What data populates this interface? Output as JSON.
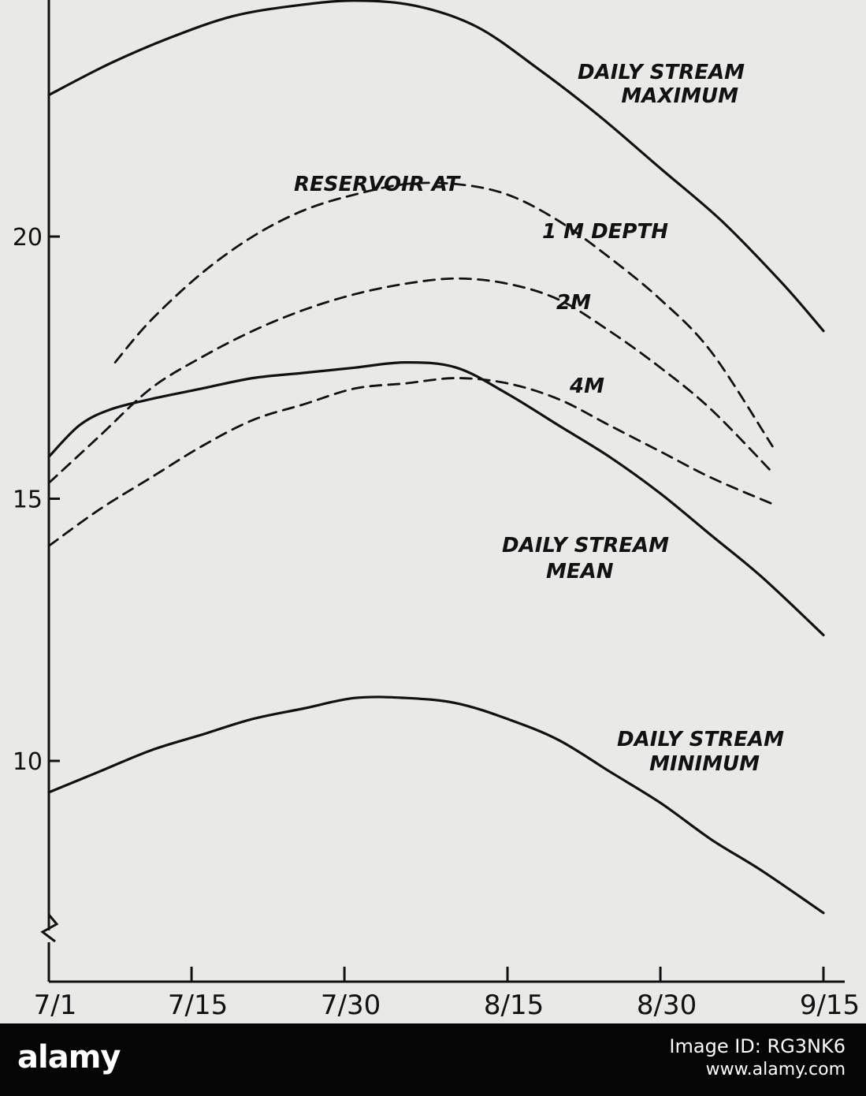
{
  "chart_data": {
    "type": "line",
    "title": "",
    "xlabel": "",
    "ylabel": "",
    "x_ticks": [
      "7/1",
      "7/15",
      "7/30",
      "8/15",
      "8/30",
      "9/15"
    ],
    "x_tick_days": [
      0,
      14,
      29,
      45,
      60,
      76
    ],
    "y_ticks": [
      10,
      15,
      20
    ],
    "ylim": [
      6.5,
      24.7
    ],
    "y_axis_break": true,
    "grid": false,
    "legend": "none",
    "series": [
      {
        "name": "DAILY STREAM MAXIMUM",
        "style": "solid",
        "x": [
          0,
          6,
          12,
          18,
          24,
          30,
          36,
          42,
          48,
          54,
          60,
          66,
          72,
          76
        ],
        "y": [
          22.7,
          23.3,
          23.8,
          24.2,
          24.4,
          24.5,
          24.4,
          24.0,
          23.2,
          22.3,
          21.3,
          20.3,
          19.1,
          18.2
        ]
      },
      {
        "name": "1 M DEPTH",
        "style": "dashed",
        "x": [
          6.5,
          10,
          15,
          20,
          25,
          30,
          35,
          40,
          45,
          50,
          55,
          60,
          65,
          71
        ],
        "y": [
          17.6,
          18.4,
          19.3,
          20.0,
          20.5,
          20.8,
          21.0,
          21.0,
          20.8,
          20.3,
          19.6,
          18.8,
          17.8,
          16.0
        ]
      },
      {
        "name": "2M",
        "style": "dashed",
        "x": [
          0,
          5,
          10,
          15,
          20,
          25,
          30,
          35,
          40,
          45,
          50,
          55,
          60,
          65,
          71
        ],
        "y": [
          15.3,
          16.2,
          17.1,
          17.7,
          18.2,
          18.6,
          18.9,
          19.1,
          19.2,
          19.1,
          18.8,
          18.2,
          17.5,
          16.7,
          15.5
        ]
      },
      {
        "name": "4M",
        "style": "dashed",
        "x": [
          0,
          5,
          10,
          15,
          20,
          25,
          30,
          35,
          40,
          45,
          50,
          55,
          60,
          65,
          71
        ],
        "y": [
          14.1,
          14.8,
          15.4,
          16.0,
          16.5,
          16.8,
          17.1,
          17.2,
          17.3,
          17.2,
          16.9,
          16.4,
          15.9,
          15.4,
          14.9
        ]
      },
      {
        "name": "DAILY STREAM MEAN",
        "style": "solid",
        "x": [
          0,
          3,
          6,
          10,
          15,
          20,
          25,
          30,
          35,
          40,
          45,
          50,
          55,
          60,
          65,
          70,
          76
        ],
        "y": [
          15.8,
          16.4,
          16.7,
          16.9,
          17.1,
          17.3,
          17.4,
          17.5,
          17.6,
          17.5,
          17.0,
          16.4,
          15.8,
          15.1,
          14.3,
          13.5,
          12.4
        ]
      },
      {
        "name": "DAILY STREAM MINIMUM",
        "style": "solid",
        "x": [
          0,
          5,
          10,
          15,
          20,
          25,
          30,
          35,
          40,
          45,
          50,
          55,
          60,
          65,
          70,
          76
        ],
        "y": [
          9.4,
          9.8,
          10.2,
          10.5,
          10.8,
          11.0,
          11.2,
          11.2,
          11.1,
          10.8,
          10.4,
          9.8,
          9.2,
          8.5,
          7.9,
          7.1
        ]
      }
    ],
    "annotations": {
      "max_label": [
        "DAILY STREAM",
        "MAXIMUM"
      ],
      "reservoir_label": "RESERVOIR AT",
      "depth1_label": "1 M DEPTH",
      "depth2_label": "2M",
      "depth4_label": "4M",
      "mean_label": [
        "DAILY STREAM",
        "MEAN"
      ],
      "min_label": [
        "DAILY STREAM",
        "MINIMUM"
      ]
    }
  },
  "watermark": {
    "brand": "alamy",
    "image_id_line1": "Image ID: RG3NK6",
    "image_id_line2": "www.alamy.com"
  }
}
